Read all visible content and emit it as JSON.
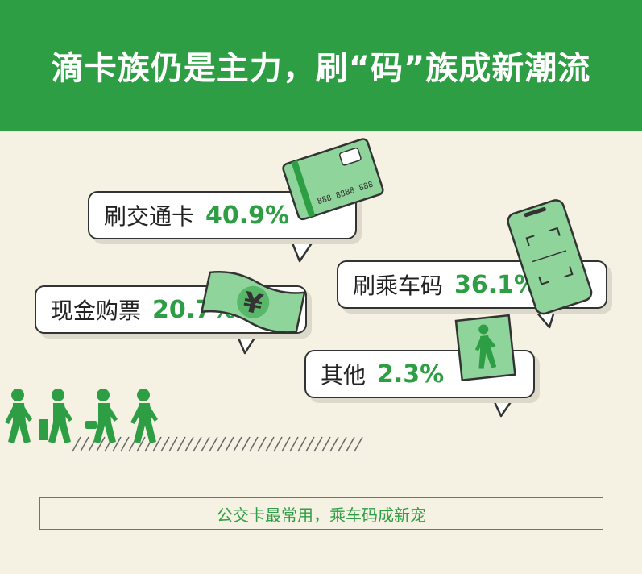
{
  "title": "滴卡族仍是主力，刷“码”族成新潮流",
  "items": [
    {
      "label": "刷交通卡",
      "value": "40.9%"
    },
    {
      "label": "刷乘车码",
      "value": "36.1%"
    },
    {
      "label": "现金购票",
      "value": "20.7%"
    },
    {
      "label": "其他",
      "value": "2.3%"
    }
  ],
  "card_number": "888 8888 888",
  "yuan_symbol": "¥",
  "footer": "公交卡最常用，乘车码成新宠",
  "colors": {
    "green": "#2e9e44",
    "light_green": "#8fd49a",
    "bg": "#f5f1e3",
    "outline": "#333333"
  }
}
